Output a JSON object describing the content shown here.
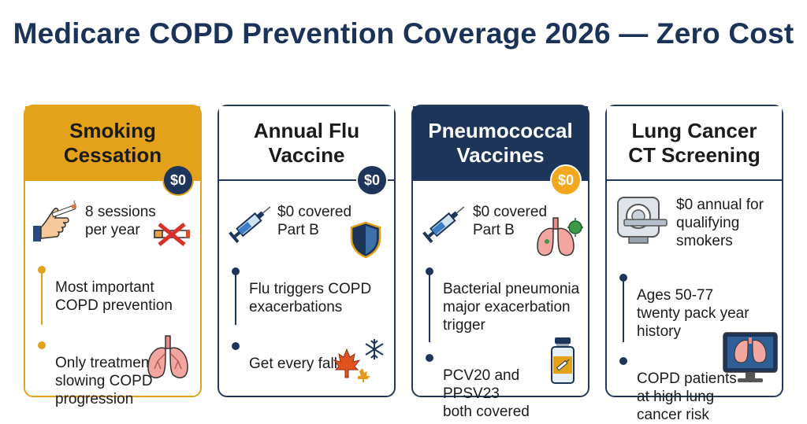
{
  "title": "Medicare COPD Prevention Coverage 2026 — Zero Cost",
  "colors": {
    "navy": "#1d3558",
    "orange": "#e3a21a",
    "gold": "#f1a81e"
  },
  "cards": [
    {
      "heading": "Smoking\nCessation",
      "badge": "$0",
      "main_text": "8 sessions\nper year",
      "icons": [
        "hand-cigarette-icon",
        "no-smoking-icon",
        "lungs-icon"
      ],
      "bullets": [
        "Most important\nCOPD prevention",
        "Only treatment\nslowing COPD\nprogression"
      ]
    },
    {
      "heading": "Annual Flu\nVaccine",
      "badge": "$0",
      "main_text": "$0 covered\nPart B",
      "icons": [
        "syringe-icon",
        "shield-icon",
        "maple-leaf-icon",
        "snowflake-icon"
      ],
      "bullets": [
        "Flu triggers COPD\nexacerbations",
        "Get every fall"
      ]
    },
    {
      "heading": "Pneumococcal\nVaccines",
      "badge": "$0",
      "main_text": "$0 covered\nPart B",
      "icons": [
        "syringe-icon",
        "lungs-bacteria-icon",
        "vaccine-vial-icon"
      ],
      "bullets": [
        "Bacterial pneumonia\nmajor exacerbation\ntrigger",
        "PCV20 and\nPPSV23\nboth covered"
      ]
    },
    {
      "heading": "Lung Cancer\nCT Screening",
      "main_text": "$0 annual for\nqualifying\nsmokers",
      "icons": [
        "ct-scanner-icon",
        "lung-monitor-icon"
      ],
      "bullets": [
        "Ages 50-77\ntwenty pack year\nhistory",
        "COPD patients\nat high lung\ncancer risk"
      ]
    }
  ]
}
